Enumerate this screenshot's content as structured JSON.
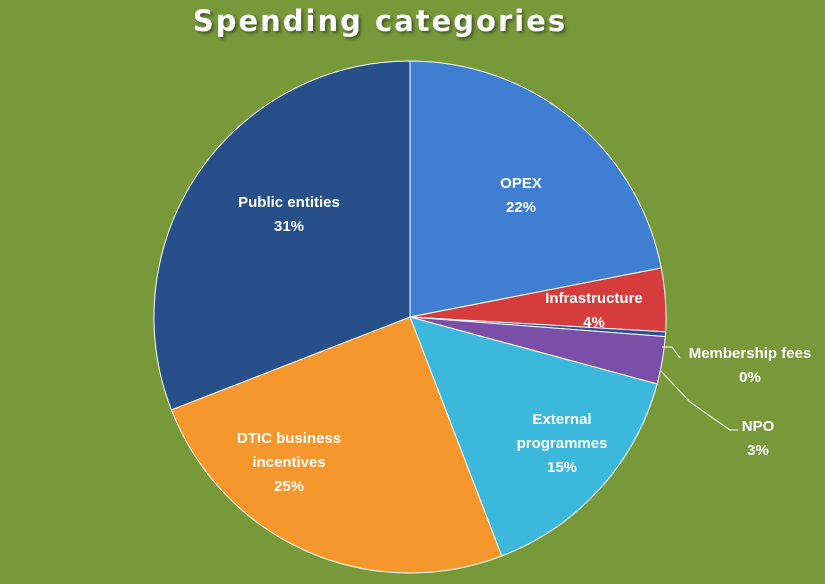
{
  "chart_data": {
    "type": "pie",
    "title": "Spending categories",
    "slices": [
      {
        "name": "OPEX",
        "value": 22,
        "display": "22%",
        "color": "#3f7ed1"
      },
      {
        "name": "Infrastructure",
        "value": 4,
        "display": "4%",
        "color": "#d63c3c"
      },
      {
        "name": "Membership fees",
        "value": 0.3,
        "display": "0%",
        "color": "#2e4f9c"
      },
      {
        "name": "NPO",
        "value": 3,
        "display": "3%",
        "color": "#7b4fa8"
      },
      {
        "name": "External programmes",
        "value": 15,
        "display": "15%",
        "color": "#3cb8dd"
      },
      {
        "name": "DTIC business incentives",
        "value": 25,
        "display": "25%",
        "color": "#f5972c"
      },
      {
        "name": "Public entities",
        "value": 31,
        "display": "31%",
        "color": "#27508b"
      }
    ],
    "start_angle": "12 o'clock",
    "direction": "clockwise",
    "legend": "none",
    "label_color": "#ffffff"
  }
}
